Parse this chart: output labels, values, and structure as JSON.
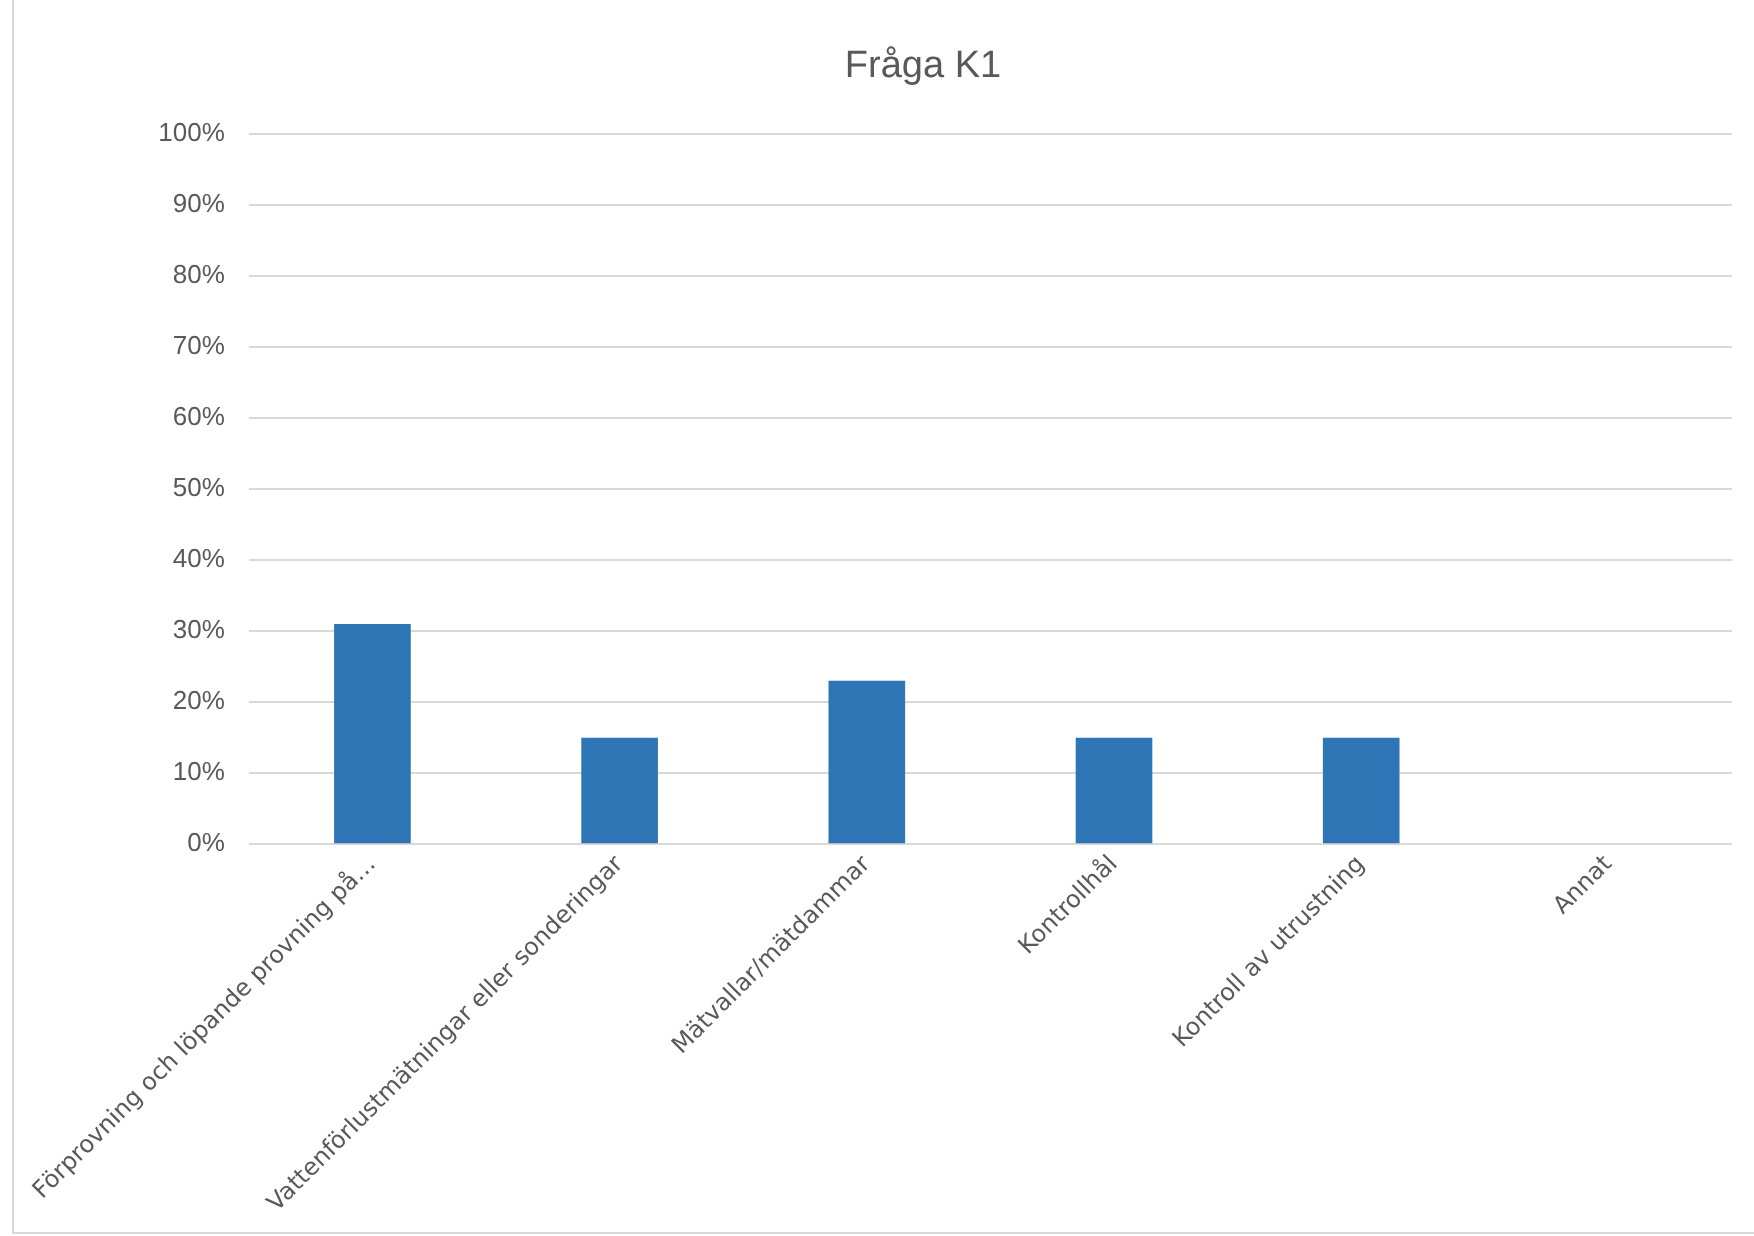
{
  "chart_data": {
    "type": "bar",
    "title": "Fråga K1",
    "categories": [
      "Förprovning och löpande provning på…",
      "Vattenförlustmätningar eller sonderingar",
      "Mätvallar/mätdammar",
      "Kontrollhål",
      "Kontroll av utrustning",
      "Annat"
    ],
    "values": [
      31,
      15,
      23,
      15,
      15,
      0
    ],
    "color": "#2e75b6",
    "ylim": [
      0,
      100
    ],
    "yticks": [
      {
        "value": 0,
        "label": "0%"
      },
      {
        "value": 10,
        "label": "10%"
      },
      {
        "value": 20,
        "label": "20%"
      },
      {
        "value": 30,
        "label": "30%"
      },
      {
        "value": 40,
        "label": "40%"
      },
      {
        "value": 50,
        "label": "50%"
      },
      {
        "value": 60,
        "label": "60%"
      },
      {
        "value": 70,
        "label": "70%"
      },
      {
        "value": 80,
        "label": "80%"
      },
      {
        "value": 90,
        "label": "90%"
      },
      {
        "value": 100,
        "label": "100%"
      }
    ],
    "grid": "y",
    "legend": false
  }
}
